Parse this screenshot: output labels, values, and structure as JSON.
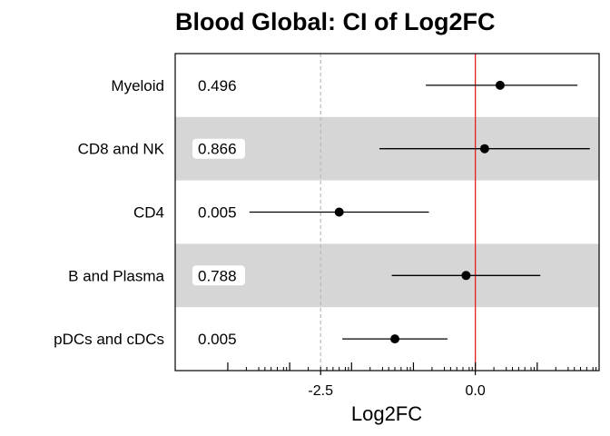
{
  "chart_data": {
    "type": "scatter",
    "title": "Blood Global: CI of Log2FC",
    "xlabel": "Log2FC",
    "ylabel": "",
    "xlim": [
      -4.85,
      2.0
    ],
    "x_ticks": [
      -2.5,
      0.0
    ],
    "x_tick_labels": [
      "-2.5",
      "0.0"
    ],
    "reference_line": {
      "x": 0,
      "color": "#e8201e"
    },
    "dashed_line": {
      "x": -2.5,
      "color": "#b8b8b8"
    },
    "categories": [
      "Myeloid",
      "CD8 and NK",
      "CD4",
      "B and Plasma",
      "pDCs and cDCs"
    ],
    "estimates": [
      0.4,
      0.15,
      -2.2,
      -0.15,
      -1.3
    ],
    "ci_low": [
      -0.8,
      -1.55,
      -3.65,
      -1.35,
      -2.15
    ],
    "ci_high": [
      1.65,
      1.85,
      -0.75,
      1.05,
      -0.45
    ],
    "p_values": [
      "0.496",
      "0.866",
      "0.005",
      "0.788",
      "0.005"
    ],
    "shaded_rows": [
      false,
      true,
      false,
      true,
      false
    ],
    "band_color": "#d6d6d6",
    "grid": false
  }
}
